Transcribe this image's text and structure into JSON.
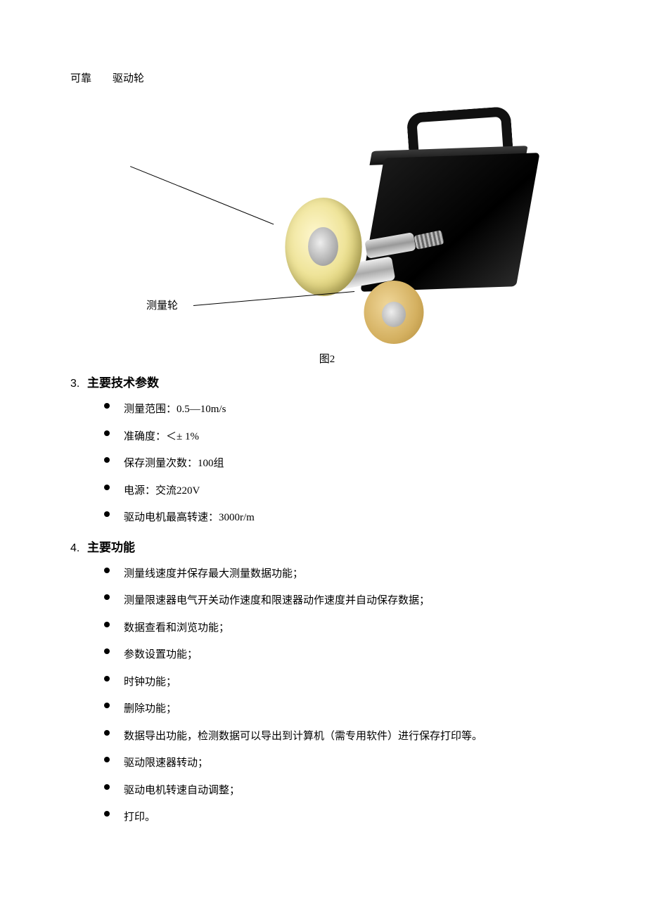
{
  "text_color": "#000000",
  "background_color": "#ffffff",
  "top": {
    "label_left": "可靠",
    "label_right": "驱动轮"
  },
  "figure": {
    "label_measure_wheel": "测量轮",
    "caption": "图2",
    "colors": {
      "body": "#0a0a0a",
      "handle": "#111111",
      "drive_wheel": "#efe49a",
      "measure_wheel": "#d4b060",
      "metal": "#bbbbbb"
    }
  },
  "sections": {
    "3": {
      "num": "3.",
      "title": "主要技术参数",
      "items": [
        "测量范围：0.5—10m/s",
        "准确度：＜± 1%",
        "保存测量次数：100组",
        "电源：交流220V",
        "驱动电机最高转速：3000r/m"
      ]
    },
    "4": {
      "num": "4.",
      "title": "主要功能",
      "items": [
        "测量线速度并保存最大测量数据功能；",
        "测量限速器电气开关动作速度和限速器动作速度并自动保存数据；",
        "数据查看和浏览功能；",
        "参数设置功能；",
        "时钟功能；",
        "删除功能；",
        "数据导出功能，检测数据可以导出到计算机（需专用软件）进行保存打印等。",
        "驱动限速器转动；",
        "驱动电机转速自动调整；",
        "打印。"
      ]
    }
  }
}
